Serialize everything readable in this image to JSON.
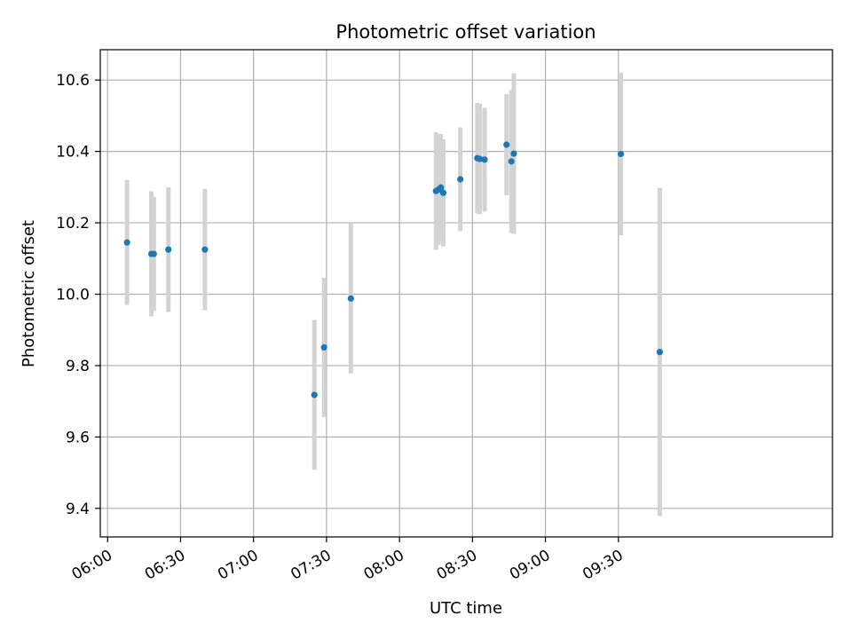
{
  "chart_data": {
    "type": "scatter",
    "title": "Photometric offset variation",
    "xlabel": "UTC time",
    "ylabel": "Photometric offset",
    "xlim": [
      "05:57",
      "10:58"
    ],
    "ylim": [
      9.32,
      10.685
    ],
    "xticks": [
      "06:00",
      "06:30",
      "07:00",
      "07:30",
      "08:00",
      "08:30",
      "09:00",
      "09:30"
    ],
    "yticks": [
      "9.4",
      "9.6",
      "9.8",
      "10.0",
      "10.2",
      "10.4",
      "10.6"
    ],
    "grid": true,
    "legend": "none",
    "colors": {
      "point": "#1f77b4",
      "errorbar": "#d3d3d3",
      "grid": "#b0b0b0",
      "axes": "#000000"
    },
    "points": [
      {
        "x": "06:08",
        "y": 10.145,
        "err": 0.175
      },
      {
        "x": "06:18",
        "y": 10.113,
        "err": 0.175
      },
      {
        "x": "06:19",
        "y": 10.113,
        "err": 0.16
      },
      {
        "x": "06:25",
        "y": 10.125,
        "err": 0.175
      },
      {
        "x": "06:40",
        "y": 10.125,
        "err": 0.17
      },
      {
        "x": "07:25",
        "y": 9.718,
        "err": 0.21
      },
      {
        "x": "07:29",
        "y": 9.851,
        "err": 0.195
      },
      {
        "x": "07:40",
        "y": 9.988,
        "err": 0.21
      },
      {
        "x": "08:15",
        "y": 10.289,
        "err": 0.165
      },
      {
        "x": "08:16",
        "y": 10.293,
        "err": 0.155
      },
      {
        "x": "08:17",
        "y": 10.299,
        "err": 0.15
      },
      {
        "x": "08:18",
        "y": 10.284,
        "err": 0.15
      },
      {
        "x": "08:25",
        "y": 10.322,
        "err": 0.145
      },
      {
        "x": "08:32",
        "y": 10.381,
        "err": 0.155
      },
      {
        "x": "08:33",
        "y": 10.379,
        "err": 0.155
      },
      {
        "x": "08:35",
        "y": 10.377,
        "err": 0.145
      },
      {
        "x": "08:44",
        "y": 10.419,
        "err": 0.142
      },
      {
        "x": "08:46",
        "y": 10.372,
        "err": 0.2
      },
      {
        "x": "08:47",
        "y": 10.394,
        "err": 0.225
      },
      {
        "x": "09:31",
        "y": 10.393,
        "err": 0.228
      },
      {
        "x": "09:47",
        "y": 9.838,
        "err": 0.46
      }
    ]
  }
}
